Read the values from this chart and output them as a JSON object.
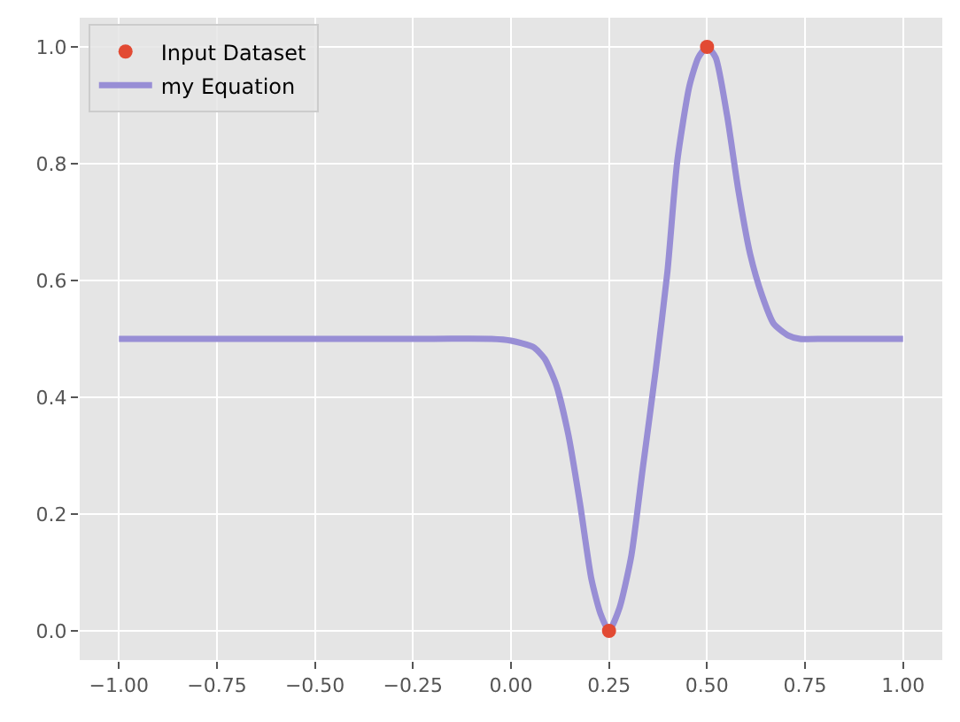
{
  "chart_data": {
    "type": "scatter",
    "xlim": [
      -1.1,
      1.1
    ],
    "ylim": [
      -0.05,
      1.05
    ],
    "xticks": [
      {
        "value": -1,
        "label": "−1.00"
      },
      {
        "value": -0.75,
        "label": "−0.75"
      },
      {
        "value": -0.5,
        "label": "−0.50"
      },
      {
        "value": -0.25,
        "label": "−0.25"
      },
      {
        "value": 0,
        "label": "0.00"
      },
      {
        "value": 0.25,
        "label": "0.25"
      },
      {
        "value": 0.5,
        "label": "0.50"
      },
      {
        "value": 0.75,
        "label": "0.75"
      },
      {
        "value": 1,
        "label": "1.00"
      }
    ],
    "yticks": [
      {
        "value": 0,
        "label": "0.0"
      },
      {
        "value": 0.2,
        "label": "0.2"
      },
      {
        "value": 0.4,
        "label": "0.4"
      },
      {
        "value": 0.6,
        "label": "0.6"
      },
      {
        "value": 0.8,
        "label": "0.8"
      },
      {
        "value": 1,
        "label": "1.0"
      }
    ],
    "grid": true,
    "legend": "top left",
    "series": [
      {
        "name": "my Equation",
        "type": "line",
        "marker": "none",
        "color": "#988ed5",
        "x": [
          -1,
          -0.75,
          -0.5,
          -0.25,
          -0.05,
          0,
          0.057,
          0.086,
          0.116,
          0.146,
          0.176,
          0.205,
          0.228,
          0.25,
          0.277,
          0.307,
          0.336,
          0.369,
          0.399,
          0.424,
          0.455,
          0.478,
          0.5,
          0.522,
          0.551,
          0.58,
          0.61,
          0.64,
          0.67,
          0.707,
          0.737,
          0.8,
          0.9,
          1
        ],
        "values": [
          0.5,
          0.5,
          0.5,
          0.5,
          0.5,
          0.497,
          0.486,
          0.466,
          0.42,
          0.337,
          0.218,
          0.089,
          0.03,
          0,
          0.04,
          0.129,
          0.278,
          0.446,
          0.615,
          0.804,
          0.933,
          0.982,
          1,
          0.982,
          0.883,
          0.754,
          0.645,
          0.575,
          0.526,
          0.506,
          0.5,
          0.5,
          0.5,
          0.5
        ]
      },
      {
        "name": "Input Dataset",
        "marker": "circle",
        "color": "#e24a33",
        "x": [
          0.25,
          0.5
        ],
        "values": [
          0,
          1
        ]
      }
    ]
  }
}
